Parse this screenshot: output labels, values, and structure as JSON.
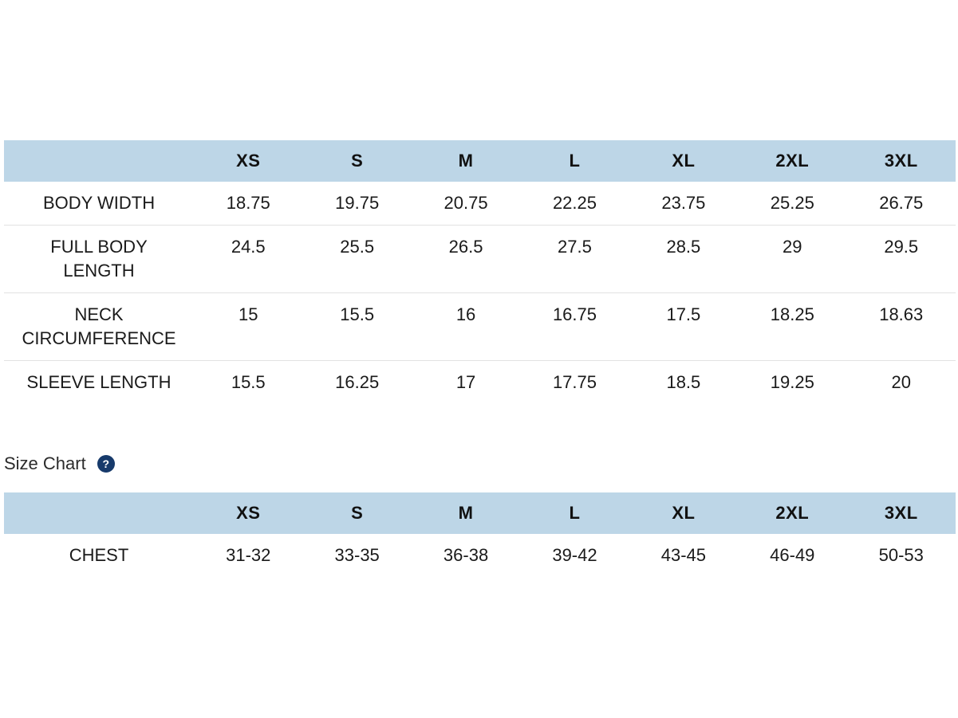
{
  "sizes": [
    "XS",
    "S",
    "M",
    "L",
    "XL",
    "2XL",
    "3XL"
  ],
  "measurements": {
    "rows": [
      {
        "label": "BODY WIDTH",
        "values": [
          "18.75",
          "19.75",
          "20.75",
          "22.25",
          "23.75",
          "25.25",
          "26.75"
        ]
      },
      {
        "label": "FULL BODY LENGTH",
        "values": [
          "24.5",
          "25.5",
          "26.5",
          "27.5",
          "28.5",
          "29",
          "29.5"
        ]
      },
      {
        "label": "NECK CIRCUMFERENCE",
        "values": [
          "15",
          "15.5",
          "16",
          "16.75",
          "17.5",
          "18.25",
          "18.63"
        ]
      },
      {
        "label": "SLEEVE LENGTH",
        "values": [
          "15.5",
          "16.25",
          "17",
          "17.75",
          "18.5",
          "19.25",
          "20"
        ]
      }
    ]
  },
  "size_chart": {
    "title": "Size Chart",
    "help_icon": "question-mark-icon",
    "help_glyph": "?",
    "rows": [
      {
        "label": "CHEST",
        "values": [
          "31-32",
          "33-35",
          "36-38",
          "39-42",
          "43-45",
          "46-49",
          "50-53"
        ]
      }
    ]
  },
  "colors": {
    "header_bg": "#bdd6e7",
    "help_icon_bg": "#173a6b",
    "row_divider": "#e2e2e2"
  }
}
